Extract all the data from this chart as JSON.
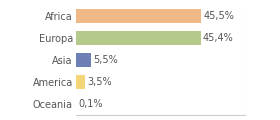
{
  "categories": [
    "Africa",
    "Europa",
    "Asia",
    "America",
    "Oceania"
  ],
  "values": [
    45.5,
    45.4,
    5.5,
    3.5,
    0.1
  ],
  "labels": [
    "45,5%",
    "45,4%",
    "5,5%",
    "3,5%",
    "0,1%"
  ],
  "colors": [
    "#f0b987",
    "#b5c98a",
    "#6d7fb5",
    "#f5d57a",
    "#e8e8e8"
  ],
  "background_color": "#ffffff",
  "xlim": [
    0,
    62
  ],
  "bar_height": 0.62,
  "label_fontsize": 7.0,
  "tick_fontsize": 7.0,
  "border_color": "#cccccc",
  "text_color": "#555555"
}
